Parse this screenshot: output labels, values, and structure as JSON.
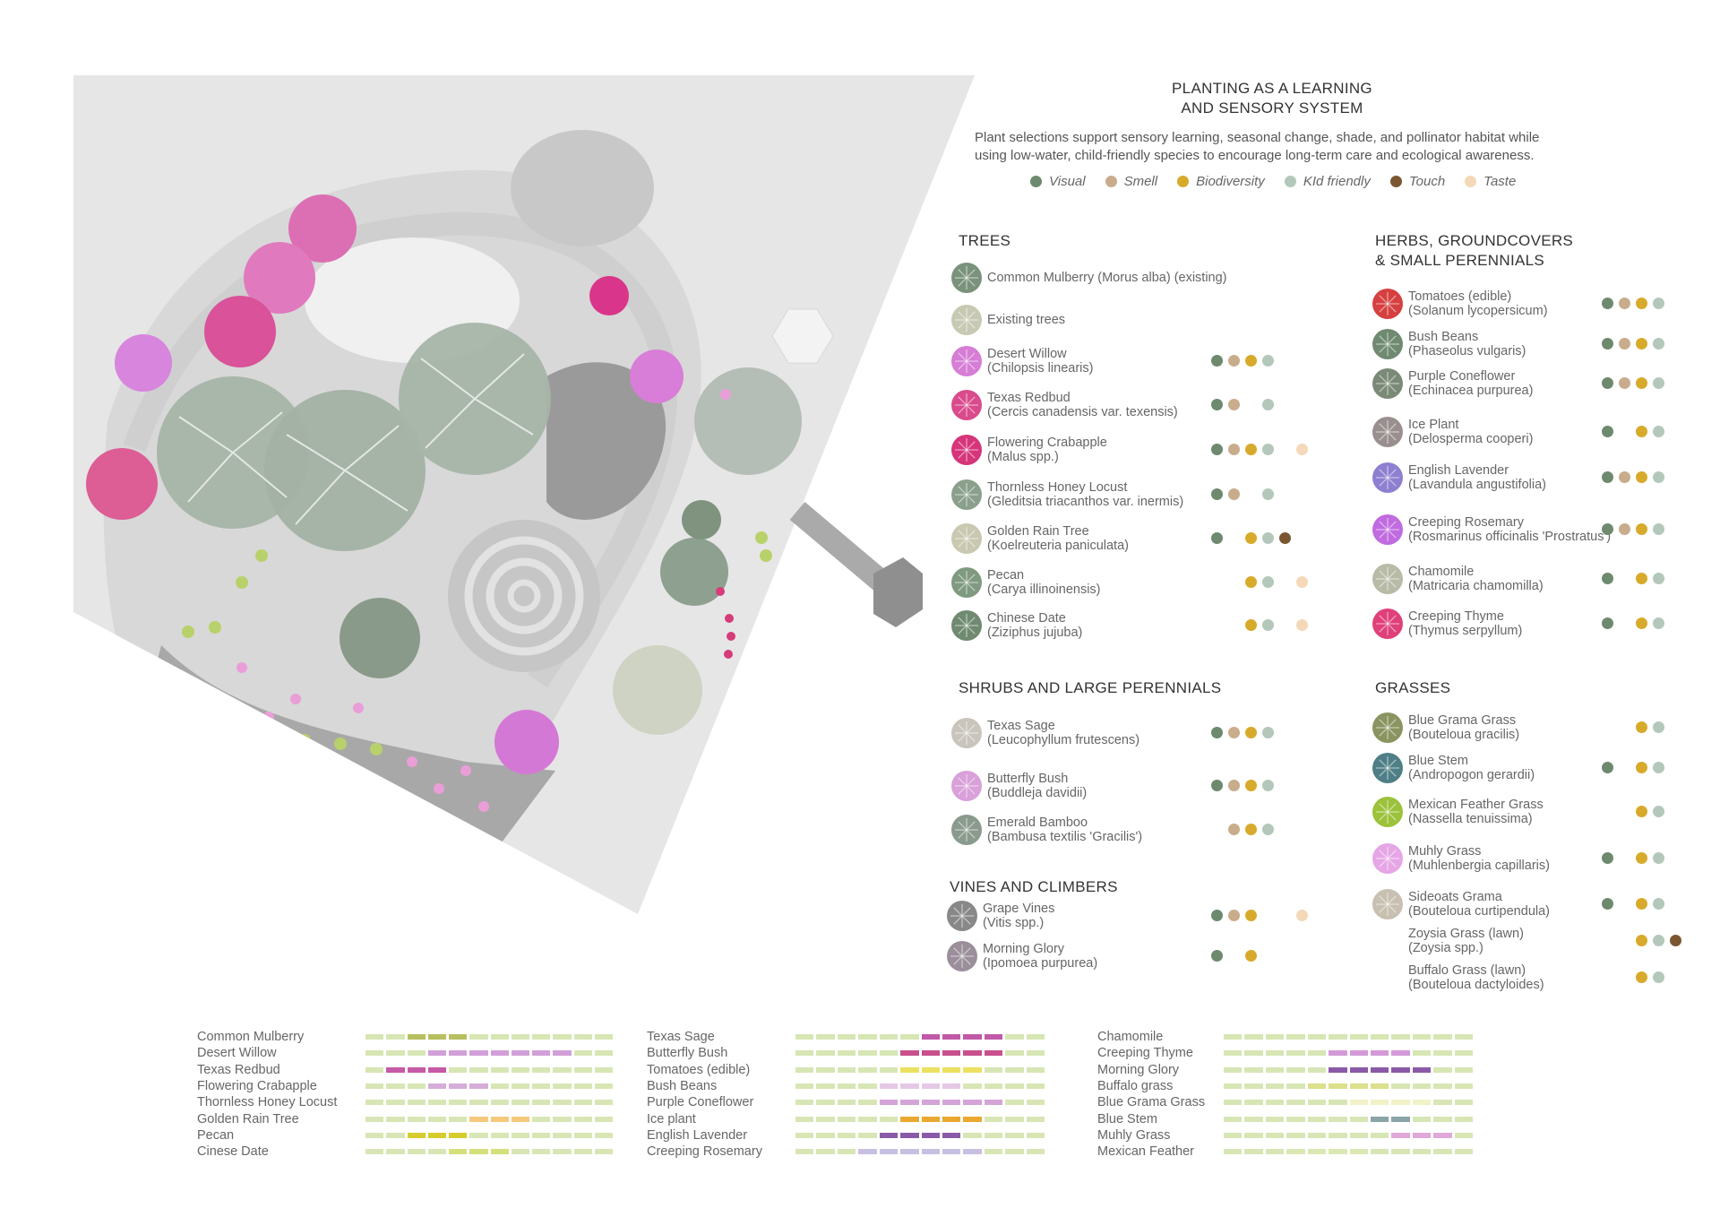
{
  "header": {
    "title_line1": "PLANTING AS A LEARNING",
    "title_line2": "AND SENSORY SYSTEM",
    "intro_line1": "Plant selections support sensory learning, seasonal change, shade, and pollinator habitat while",
    "intro_line2": "using low-water, child-friendly species to encourage long-term care and ecological awareness."
  },
  "legend": [
    {
      "label": "Visual",
      "color": "#6e8a6e"
    },
    {
      "label": "Smell",
      "color": "#c9ac8c"
    },
    {
      "label": "Biodiversity",
      "color": "#d8aa2c"
    },
    {
      "label": "KId friendly",
      "color": "#b4c7bb"
    },
    {
      "label": "Touch",
      "color": "#7a5731"
    },
    {
      "label": "Taste",
      "color": "#f4d8b8"
    }
  ],
  "sections": {
    "trees": "TREES",
    "herbs_line1": "HERBS, GROUNDCOVERS",
    "herbs_line2": "& SMALL PERENNIALS",
    "shrubs": "SHRUBS AND LARGE PERENNIALS",
    "vines": "VINES AND CLIMBERS",
    "grasses": "GRASSES"
  },
  "trees": [
    {
      "l1": "Common Mulberry (Morus alba) (existing)",
      "l2": "",
      "icon": "mulberry-icon",
      "color": "#7a927c",
      "dots": []
    },
    {
      "l1": "Existing trees",
      "l2": "",
      "icon": "existing-tree-icon",
      "color": "#c7c9b3",
      "dots": []
    },
    {
      "l1": "Desert Willow",
      "l2": "(Chilopsis linearis)",
      "icon": "desert-willow-icon",
      "color": "#d67dd6",
      "dots": [
        0,
        1,
        2,
        3
      ]
    },
    {
      "l1": "Texas Redbud",
      "l2": "(Cercis canadensis var. texensis)",
      "icon": "texas-redbud-icon",
      "color": "#d94b8c",
      "dots": [
        0,
        1,
        3
      ]
    },
    {
      "l1": "Flowering Crabapple",
      "l2": "(Malus spp.)",
      "icon": "crabapple-icon",
      "color": "#d6357b",
      "dots": [
        0,
        1,
        2,
        3,
        5
      ]
    },
    {
      "l1": "Thornless Honey Locust",
      "l2": "(Gleditsia triacanthos var. inermis)",
      "icon": "honey-locust-icon",
      "color": "#8aa08c",
      "dots": [
        0,
        1,
        3
      ]
    },
    {
      "l1": "Golden Rain Tree",
      "l2": "(Koelreuteria paniculata)",
      "icon": "golden-rain-tree-icon",
      "color": "#c9c8b0",
      "dots": [
        0,
        2,
        3,
        4
      ]
    },
    {
      "l1": "Pecan",
      "l2": "(Carya illinoinensis)",
      "icon": "pecan-icon",
      "color": "#7f9a80",
      "dots": [
        2,
        3,
        5
      ]
    },
    {
      "l1": "Chinese Date",
      "l2": "(Ziziphus jujuba)",
      "icon": "chinese-date-icon",
      "color": "#6f8a70",
      "dots": [
        2,
        3,
        5
      ]
    }
  ],
  "herbs": [
    {
      "l1": "Tomatoes (edible)",
      "l2": "(Solanum lycopersicum)",
      "icon": "tomato-icon",
      "color": "#d64040",
      "dots": [
        0,
        1,
        2,
        3
      ]
    },
    {
      "l1": "Bush Beans",
      "l2": "(Phaseolus vulgaris)",
      "icon": "bush-beans-icon",
      "color": "#6f8a70",
      "dots": [
        0,
        1,
        2,
        3
      ]
    },
    {
      "l1": "Purple Coneflower",
      "l2": "(Echinacea purpurea)",
      "icon": "coneflower-icon",
      "color": "#7a8a76",
      "dots": [
        0,
        1,
        2,
        3
      ]
    },
    {
      "l1": "Ice Plant",
      "l2": "(Delosperma cooperi)",
      "icon": "ice-plant-icon",
      "color": "#9a8f8f",
      "dots": [
        0,
        2,
        3
      ]
    },
    {
      "l1": "English Lavender",
      "l2": "(Lavandula angustifolia)",
      "icon": "lavender-icon",
      "color": "#8f7fd0",
      "dots": [
        0,
        1,
        2,
        3
      ]
    },
    {
      "l1": "Creeping Rosemary",
      "l2": "(Rosmarinus officinalis 'Prostratus')",
      "icon": "rosemary-icon",
      "color": "#c06be0",
      "dots": [
        0,
        1,
        2,
        3
      ]
    },
    {
      "l1": "Chamomile",
      "l2": "(Matricaria chamomilla)",
      "icon": "chamomile-icon",
      "color": "#b8bba6",
      "dots": [
        0,
        2,
        3
      ]
    },
    {
      "l1": "Creeping Thyme",
      "l2": "(Thymus serpyllum)",
      "icon": "thyme-icon",
      "color": "#e0407a",
      "dots": [
        0,
        2,
        3
      ]
    }
  ],
  "shrubs": [
    {
      "l1": "Texas Sage",
      "l2": "(Leucophyllum frutescens)",
      "icon": "texas-sage-icon",
      "color": "#c9c4bc",
      "dots": [
        0,
        1,
        2,
        3
      ]
    },
    {
      "l1": "Butterfly Bush",
      "l2": "(Buddleja davidii)",
      "icon": "butterfly-bush-icon",
      "color": "#d9a0d9",
      "dots": [
        0,
        1,
        2,
        3
      ]
    },
    {
      "l1": "Emerald Bamboo",
      "l2": "(Bambusa textilis 'Gracilis')",
      "icon": "bamboo-icon",
      "color": "#8a9a8c",
      "dots": [
        1,
        2,
        3
      ]
    }
  ],
  "vines": [
    {
      "l1": "Grape Vines",
      "l2": "(Vitis spp.)",
      "icon": "grape-vine-icon",
      "color": "#888888",
      "dots": [
        0,
        1,
        2,
        5
      ]
    },
    {
      "l1": "Morning Glory",
      "l2": "(Ipomoea purpurea)",
      "icon": "morning-glory-icon",
      "color": "#9a8f9a",
      "dots": [
        0,
        2
      ]
    }
  ],
  "grasses": [
    {
      "l1": "Blue Grama Grass",
      "l2": "(Bouteloua gracilis)",
      "icon": "blue-grama-icon",
      "color": "#8a9460",
      "dots": [
        2,
        3
      ]
    },
    {
      "l1": "Blue Stem",
      "l2": "(Andropogon gerardii)",
      "icon": "blue-stem-icon",
      "color": "#4f7f86",
      "dots": [
        0,
        2,
        3
      ]
    },
    {
      "l1": "Mexican Feather Grass",
      "l2": "(Nassella tenuissima)",
      "icon": "feather-grass-icon",
      "color": "#9cc23c",
      "dots": [
        2,
        3
      ]
    },
    {
      "l1": "Muhly Grass",
      "l2": "(Muhlenbergia capillaris)",
      "icon": "muhly-grass-icon",
      "color": "#e6a6e6",
      "dots": [
        0,
        2,
        3
      ]
    },
    {
      "l1": "Sideoats Grama",
      "l2": "(Bouteloua curtipendula)",
      "icon": "sideoats-icon",
      "color": "#c8c0b0",
      "dots": [
        0,
        2,
        3
      ]
    },
    {
      "l1": "Zoysia Grass (lawn)",
      "l2": "(Zoysia spp.)",
      "icon": "",
      "color": "",
      "dots": [
        2,
        3,
        4
      ]
    },
    {
      "l1": "Buffalo Grass (lawn)",
      "l2": "(Bouteloua dactyloides)",
      "icon": "",
      "color": "",
      "dots": [
        2,
        3
      ]
    }
  ],
  "timeline": {
    "col1": [
      {
        "name": "Common Mulberry",
        "color": "#b7c060",
        "on": [
          2,
          3,
          4
        ]
      },
      {
        "name": "Desert Willow",
        "color": "#d2a0d8",
        "on": [
          3,
          4,
          5,
          6,
          7,
          8,
          9
        ]
      },
      {
        "name": "Texas Redbud",
        "color": "#c65aa6",
        "on": [
          1,
          2,
          3
        ]
      },
      {
        "name": "Flowering Crabapple",
        "color": "#d6acd8",
        "on": [
          3,
          4,
          5
        ]
      },
      {
        "name": "Thornless Honey Locust",
        "color": "#d7e6b4",
        "on": []
      },
      {
        "name": "Golden Rain Tree",
        "color": "#f5c87c",
        "on": [
          5,
          6,
          7
        ]
      },
      {
        "name": "Pecan",
        "color": "#d6cc2c",
        "on": [
          2,
          3,
          4
        ]
      },
      {
        "name": "Cinese Date",
        "color": "#d4e07c",
        "on": [
          4,
          5,
          6
        ]
      }
    ],
    "col2": [
      {
        "name": "Texas Sage",
        "color": "#c05aa8",
        "on": [
          6,
          7,
          8,
          9
        ]
      },
      {
        "name": "Butterfly Bush",
        "color": "#c8508c",
        "on": [
          5,
          6,
          7,
          8,
          9
        ]
      },
      {
        "name": "Tomatoes (edible)",
        "color": "#ece060",
        "on": [
          5,
          6,
          7,
          8
        ]
      },
      {
        "name": "Bush Beans",
        "color": "#e6c8e6",
        "on": [
          4,
          5,
          6,
          7
        ]
      },
      {
        "name": "Purple Coneflower",
        "color": "#d4a4d8",
        "on": [
          4,
          5,
          6,
          7,
          8,
          9
        ]
      },
      {
        "name": "Ice plant",
        "color": "#eaa830",
        "on": [
          5,
          6,
          7,
          8
        ]
      },
      {
        "name": "English Lavender",
        "color": "#8a5aa8",
        "on": [
          4,
          5,
          6,
          7
        ]
      },
      {
        "name": "Creeping Rosemary",
        "color": "#c8c0e0",
        "on": [
          3,
          4,
          5,
          6,
          7,
          8
        ]
      }
    ],
    "col3": [
      {
        "name": "Chamomile",
        "color": "#d7e6b4",
        "on": []
      },
      {
        "name": "Creeping Thyme",
        "color": "#d49ad8",
        "on": [
          5,
          6,
          7,
          8
        ]
      },
      {
        "name": "Morning Glory",
        "color": "#8a5aa8",
        "on": [
          5,
          6,
          7,
          8,
          9
        ]
      },
      {
        "name": "Buffalo grass",
        "color": "#dce08c",
        "on": [
          4,
          5,
          6,
          7
        ]
      },
      {
        "name": "Blue Grama Grass",
        "color": "#f2f2c8",
        "on": [
          6,
          7,
          8,
          9
        ]
      },
      {
        "name": "Blue Stem",
        "color": "#8aa4a8",
        "on": [
          7,
          8
        ]
      },
      {
        "name": "Muhly Grass",
        "color": "#e0a8d8",
        "on": [
          8,
          9,
          10
        ]
      },
      {
        "name": "Mexican Feather",
        "color": "#dce8b4",
        "on": [
          3,
          4,
          5,
          6
        ]
      }
    ]
  }
}
